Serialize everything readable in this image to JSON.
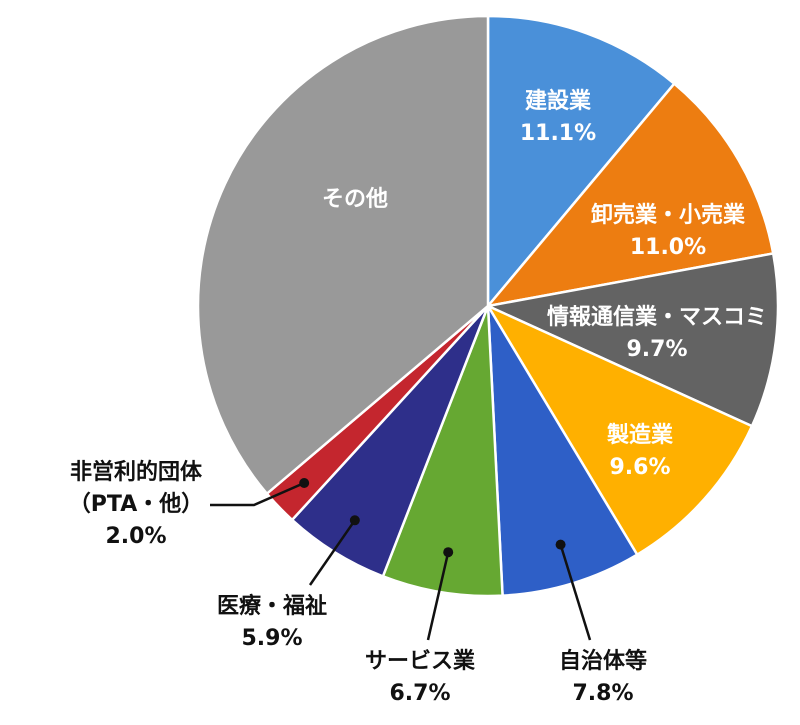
{
  "chart_data": {
    "type": "pie",
    "title": "",
    "start_angle_deg": 0,
    "direction": "clockwise",
    "slices": [
      {
        "name": "建設業",
        "value": 11.1,
        "display": "11.1%",
        "color": "#4a90d9",
        "label_pos": "inside"
      },
      {
        "name": "卸売業・小売業",
        "value": 11.0,
        "display": "11.0%",
        "color": "#ed7d11",
        "label_pos": "inside"
      },
      {
        "name": "情報通信業・マスコミ",
        "value": 9.7,
        "display": "9.7%",
        "color": "#636363",
        "label_pos": "inside"
      },
      {
        "name": "製造業",
        "value": 9.6,
        "display": "9.6%",
        "color": "#ffb000",
        "label_pos": "inside"
      },
      {
        "name": "自治体等",
        "value": 7.8,
        "display": "7.8%",
        "color": "#2e5fc7",
        "label_pos": "outside"
      },
      {
        "name": "サービス業",
        "value": 6.7,
        "display": "6.7%",
        "color": "#66a832",
        "label_pos": "outside"
      },
      {
        "name": "医療・福祉",
        "value": 5.9,
        "display": "5.9%",
        "color": "#2e2f8a",
        "label_pos": "outside"
      },
      {
        "name": "非営利的団体",
        "name_line2": "（PTA・他）",
        "value": 2.0,
        "display": "2.0%",
        "color": "#c4262e",
        "label_pos": "outside"
      },
      {
        "name": "その他",
        "value": 36.2,
        "display": "",
        "color": "#999999",
        "label_pos": "inside"
      }
    ]
  }
}
